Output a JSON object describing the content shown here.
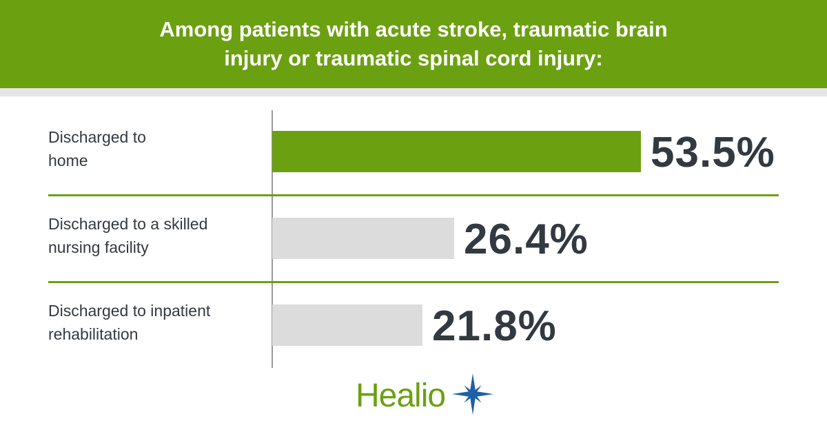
{
  "header": {
    "title": "Among patients with acute stroke, traumatic brain injury or traumatic spinal cord injury:"
  },
  "chart_data": {
    "type": "bar",
    "orientation": "horizontal",
    "categories": [
      "Discharged to home",
      "Discharged to a skilled nursing facility",
      "Discharged to inpatient rehabilitation"
    ],
    "values": [
      53.5,
      26.4,
      21.8
    ],
    "value_labels": [
      "53.5%",
      "26.4%",
      "21.8%"
    ],
    "xlim": [
      0,
      100
    ],
    "colors": [
      "#6ba011",
      "#dcdcdc",
      "#dcdcdc"
    ],
    "grid": false,
    "legend": "none"
  },
  "logo": {
    "text": "Healio",
    "star_color": "#1f5fa8"
  }
}
